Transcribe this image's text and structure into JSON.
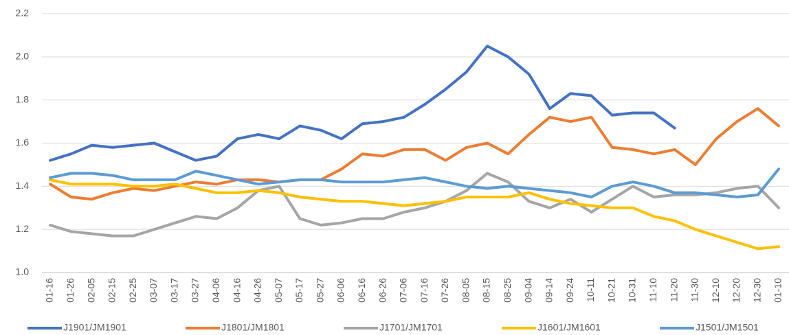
{
  "chart_data": {
    "type": "line",
    "categories": [
      "01-16",
      "01-26",
      "02-05",
      "02-15",
      "02-25",
      "03-07",
      "03-17",
      "03-27",
      "04-06",
      "04-16",
      "04-26",
      "05-07",
      "05-17",
      "05-27",
      "06-06",
      "06-16",
      "06-26",
      "07-06",
      "07-16",
      "07-26",
      "08-05",
      "08-15",
      "08-25",
      "09-04",
      "09-14",
      "09-24",
      "10-11",
      "10-21",
      "10-31",
      "11-10",
      "11-20",
      "11-30",
      "12-10",
      "12-20",
      "12-30",
      "01-10"
    ],
    "series": [
      {
        "name": "J1901/JM1901",
        "color": "#4472c4",
        "values": [
          1.52,
          1.55,
          1.59,
          1.58,
          1.59,
          1.6,
          1.56,
          1.52,
          1.54,
          1.62,
          1.64,
          1.62,
          1.68,
          1.66,
          1.62,
          1.69,
          1.7,
          1.72,
          1.78,
          1.85,
          1.93,
          2.05,
          2.0,
          1.92,
          1.76,
          1.83,
          1.82,
          1.73,
          1.74,
          1.74,
          1.67,
          null,
          null,
          null,
          null,
          null
        ]
      },
      {
        "name": "J1801/JM1801",
        "color": "#ed7d31",
        "values": [
          1.41,
          1.35,
          1.34,
          1.37,
          1.39,
          1.38,
          1.4,
          1.42,
          1.41,
          1.43,
          1.43,
          1.42,
          1.43,
          1.43,
          1.48,
          1.55,
          1.54,
          1.57,
          1.57,
          1.52,
          1.58,
          1.6,
          1.55,
          1.64,
          1.72,
          1.7,
          1.72,
          1.58,
          1.57,
          1.55,
          1.57,
          1.5,
          1.62,
          1.7,
          1.76,
          1.68
        ]
      },
      {
        "name": "J1701/JM1701",
        "color": "#a5a5a5",
        "values": [
          1.22,
          1.19,
          1.18,
          1.17,
          1.17,
          1.2,
          1.23,
          1.26,
          1.25,
          1.3,
          1.38,
          1.4,
          1.25,
          1.22,
          1.23,
          1.25,
          1.25,
          1.28,
          1.3,
          1.33,
          1.38,
          1.46,
          1.42,
          1.33,
          1.3,
          1.34,
          1.28,
          1.34,
          1.4,
          1.35,
          1.36,
          1.36,
          1.37,
          1.39,
          1.4,
          1.3
        ]
      },
      {
        "name": "J1601/JM1601",
        "color": "#ffc000",
        "values": [
          1.43,
          1.41,
          1.41,
          1.41,
          1.4,
          1.4,
          1.41,
          1.39,
          1.37,
          1.37,
          1.38,
          1.37,
          1.35,
          1.34,
          1.33,
          1.33,
          1.32,
          1.31,
          1.32,
          1.33,
          1.35,
          1.35,
          1.35,
          1.37,
          1.34,
          1.32,
          1.31,
          1.3,
          1.3,
          1.26,
          1.24,
          1.2,
          1.17,
          1.14,
          1.11,
          1.12
        ]
      },
      {
        "name": "J1501/JM1501",
        "color": "#5b9bd5",
        "values": [
          1.44,
          1.46,
          1.46,
          1.45,
          1.43,
          1.43,
          1.43,
          1.47,
          1.45,
          1.43,
          1.41,
          1.42,
          1.43,
          1.43,
          1.42,
          1.42,
          1.42,
          1.43,
          1.44,
          1.42,
          1.4,
          1.39,
          1.4,
          1.39,
          1.38,
          1.37,
          1.35,
          1.4,
          1.42,
          1.4,
          1.37,
          1.37,
          1.36,
          1.35,
          1.36,
          1.48
        ]
      }
    ],
    "ylim": [
      1.0,
      2.2
    ],
    "yticks": [
      {
        "value": 1.0,
        "label": "1.0"
      },
      1.2,
      1.4,
      1.6,
      1.8,
      {
        "value": 2.0,
        "label": "2.0"
      },
      2.2
    ],
    "grid": true,
    "legend": "bottom"
  }
}
